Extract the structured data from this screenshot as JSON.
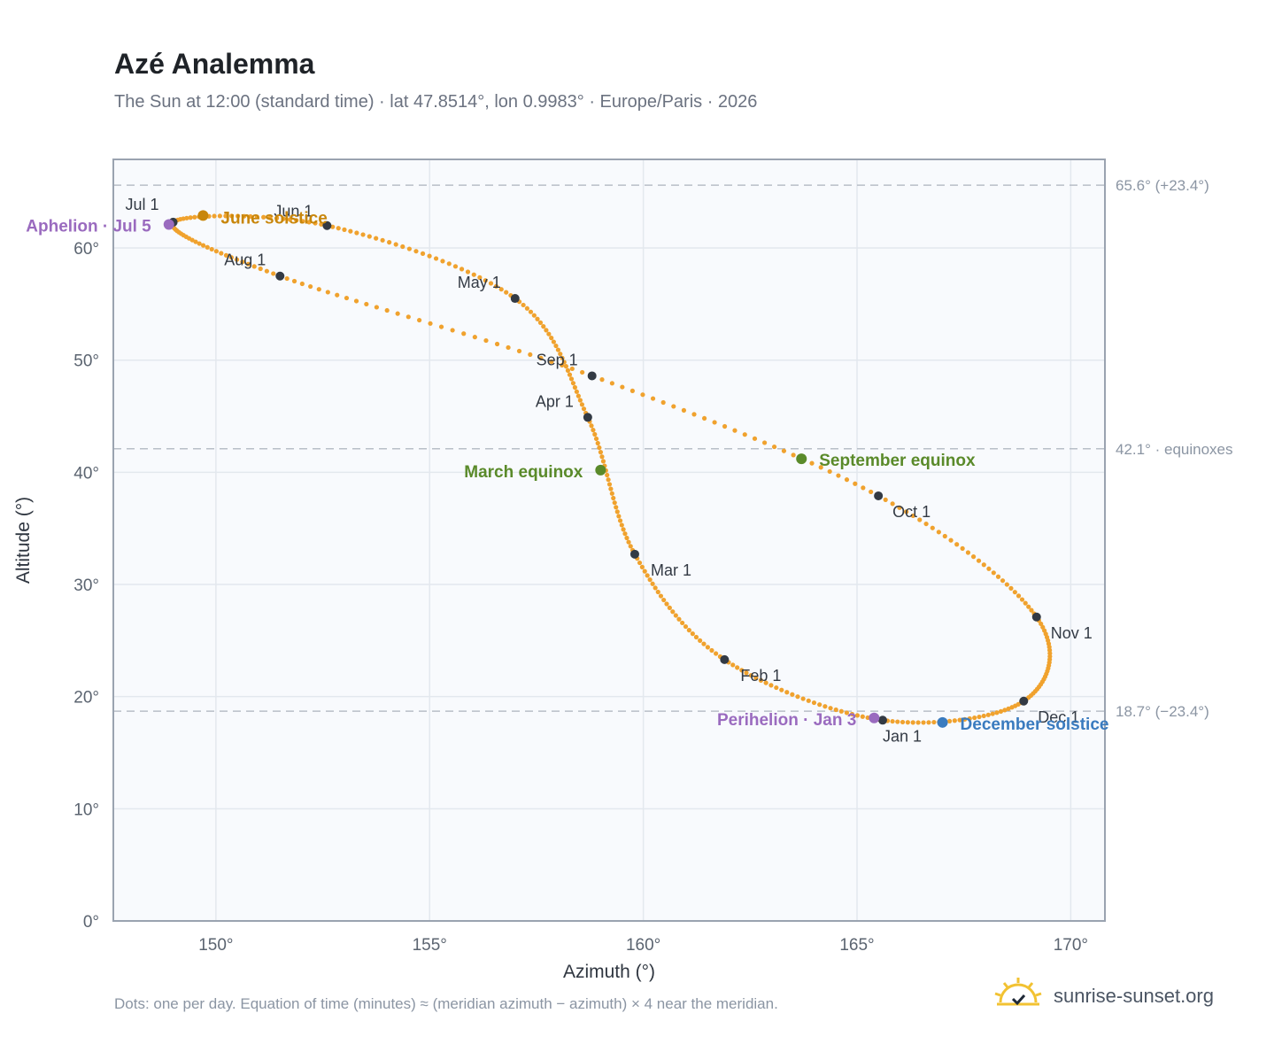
{
  "header": {
    "title": "Azé Analemma",
    "subtitle": "The Sun at 12:00 (standard time) · lat 47.8514°, lon 0.9983° · Europe/Paris · 2026"
  },
  "footer": {
    "note": "Dots: one per day. Equation of time (minutes) ≈ (meridian azimuth − azimuth) × 4 near the meridian.",
    "brand": "sunrise-sunset.org"
  },
  "colors": {
    "curve": "#f0a22e",
    "month_marker": "#333a44",
    "solstice_june": "#c8860b",
    "equinox": "#5a8a2a",
    "solstice_december": "#3a7bbf",
    "apsis": "#9a6bbf",
    "plot_bg": "#f8fafd",
    "grid": "#e3e8ee",
    "reference_line": "#b8bfc8"
  },
  "chart_data": {
    "type": "scatter",
    "xlabel": "Azimuth (°)",
    "ylabel": "Altitude (°)",
    "xlim": [
      147.6,
      170.8
    ],
    "ylim": [
      0,
      67.9
    ],
    "xticks": [
      150,
      155,
      160,
      165,
      170
    ],
    "yticks": [
      0,
      10,
      20,
      30,
      40,
      50,
      60
    ],
    "xtick_labels": [
      "150°",
      "155°",
      "160°",
      "165°",
      "170°"
    ],
    "ytick_labels": [
      "0°",
      "10°",
      "20°",
      "30°",
      "40°",
      "50°",
      "60°"
    ],
    "grid": true,
    "reference_lines": [
      {
        "y": 65.6,
        "label": "65.6° (+23.4°)"
      },
      {
        "y": 42.1,
        "label": "42.1° · equinoxes"
      },
      {
        "y": 18.7,
        "label": "18.7° (−23.4°)"
      }
    ],
    "month_markers": [
      {
        "label": "Jan 1",
        "x": 165.6,
        "y": 17.9
      },
      {
        "label": "Feb 1",
        "x": 161.9,
        "y": 23.3
      },
      {
        "label": "Mar 1",
        "x": 159.8,
        "y": 32.7
      },
      {
        "label": "Apr 1",
        "x": 158.7,
        "y": 44.9
      },
      {
        "label": "May 1",
        "x": 157.0,
        "y": 55.5
      },
      {
        "label": "Jun 1",
        "x": 152.6,
        "y": 62.0
      },
      {
        "label": "Jul 1",
        "x": 149.0,
        "y": 62.3
      },
      {
        "label": "Aug 1",
        "x": 151.5,
        "y": 57.5
      },
      {
        "label": "Sep 1",
        "x": 158.8,
        "y": 48.6
      },
      {
        "label": "Oct 1",
        "x": 165.5,
        "y": 37.9
      },
      {
        "label": "Nov 1",
        "x": 169.2,
        "y": 27.1
      },
      {
        "label": "Dec 1",
        "x": 168.9,
        "y": 19.6
      }
    ],
    "events": [
      {
        "label": "June solstice",
        "x": 149.7,
        "y": 62.9,
        "kind": "solstice_june"
      },
      {
        "label": "March equinox",
        "x": 159.0,
        "y": 40.2,
        "kind": "equinox"
      },
      {
        "label": "September equinox",
        "x": 163.7,
        "y": 41.2,
        "kind": "equinox"
      },
      {
        "label": "December solstice",
        "x": 167.0,
        "y": 17.7,
        "kind": "solstice_december"
      },
      {
        "label": "Aphelion · Jul 5",
        "x": 148.9,
        "y": 62.1,
        "kind": "apsis"
      },
      {
        "label": "Perihelion · Jan 3",
        "x": 165.4,
        "y": 18.1,
        "kind": "apsis"
      }
    ]
  }
}
